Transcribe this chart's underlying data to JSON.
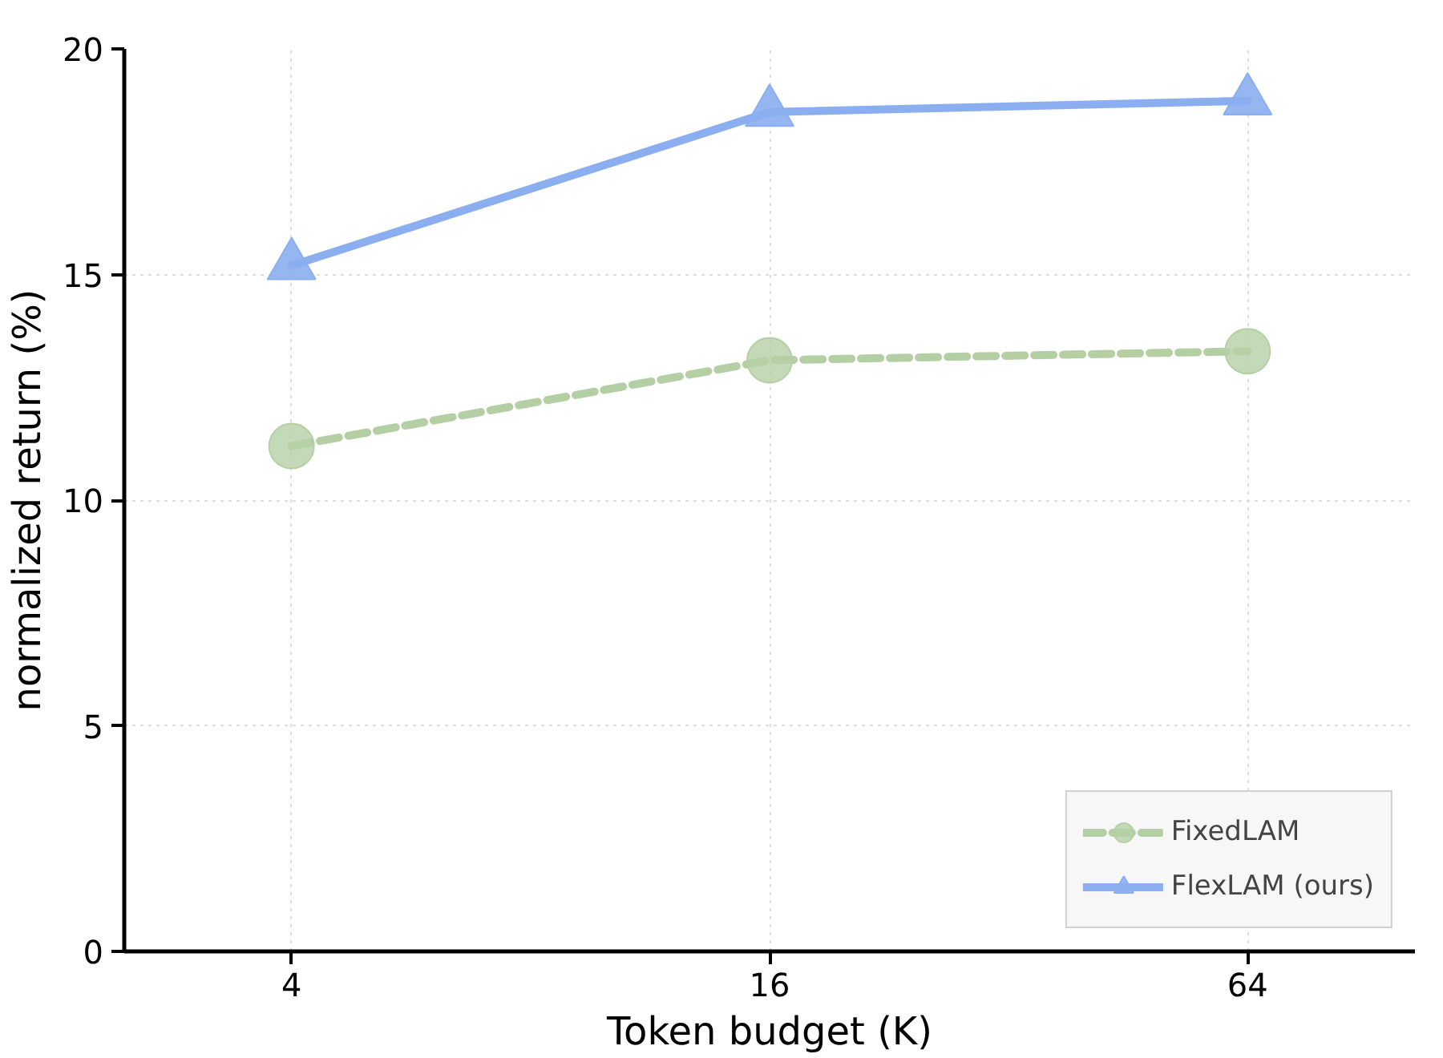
{
  "chart_data": {
    "type": "line",
    "xlabel": "Token budget (K)",
    "ylabel": "normalized return (%)",
    "categories": [
      "4",
      "16",
      "64"
    ],
    "series": [
      {
        "name": "FixedLAM",
        "color": "#b5cfa5",
        "values": [
          11.2,
          13.1,
          13.3
        ],
        "marker": "circle",
        "line_style": "dashed"
      },
      {
        "name": "FlexLAM (ours)",
        "color": "#8aaef0",
        "values": [
          15.2,
          18.6,
          18.85
        ],
        "marker": "triangle",
        "line_style": "solid"
      }
    ],
    "ylim": [
      0,
      20
    ],
    "yticks": [
      0,
      5,
      10,
      15,
      20
    ],
    "grid": true,
    "legend": "bottom right"
  }
}
